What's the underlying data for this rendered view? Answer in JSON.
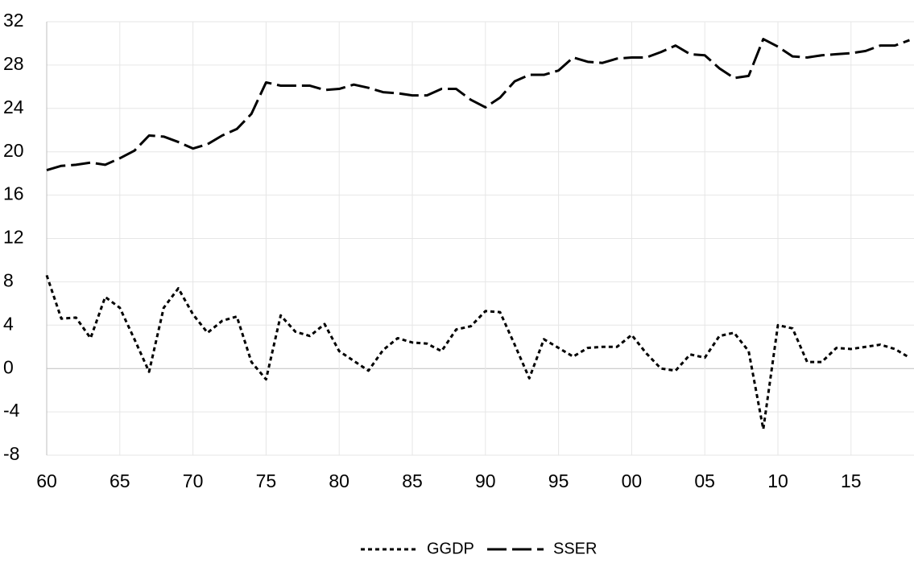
{
  "chart_data": {
    "type": "line",
    "categories": [
      "60",
      null,
      null,
      null,
      null,
      "65",
      null,
      null,
      null,
      null,
      "70",
      null,
      null,
      null,
      null,
      "75",
      null,
      null,
      null,
      null,
      "80",
      null,
      null,
      null,
      null,
      "85",
      null,
      null,
      null,
      null,
      "90",
      null,
      null,
      null,
      null,
      "95",
      null,
      null,
      null,
      null,
      "00",
      null,
      null,
      null,
      null,
      "05",
      null,
      null,
      null,
      null,
      "10",
      null,
      null,
      null,
      null,
      "15",
      null,
      null,
      null,
      null
    ],
    "series": [
      {
        "name": "GGDP",
        "color": "#000000",
        "line_style": "dotted",
        "values": [
          8.6,
          4.6,
          4.7,
          2.8,
          6.6,
          5.6,
          2.7,
          -0.3,
          5.6,
          7.4,
          5.0,
          3.3,
          4.4,
          4.8,
          0.6,
          -1.0,
          4.9,
          3.4,
          3.0,
          4.1,
          1.6,
          0.7,
          -0.2,
          1.7,
          2.8,
          2.4,
          2.3,
          1.6,
          3.6,
          3.9,
          5.3,
          5.2,
          2.2,
          -0.9,
          2.7,
          1.9,
          1.1,
          1.9,
          2.0,
          2.0,
          3.1,
          1.4,
          0.0,
          -0.2,
          1.3,
          1.0,
          3.0,
          3.3,
          1.6,
          -5.6,
          4.0,
          3.7,
          0.6,
          0.6,
          1.9,
          1.8,
          2.0,
          2.2,
          1.8,
          1.0
        ]
      },
      {
        "name": "SSER",
        "color": "#000000",
        "line_style": "dashed",
        "values": [
          18.3,
          18.7,
          18.8,
          19.0,
          18.8,
          19.4,
          20.1,
          21.5,
          21.4,
          20.9,
          20.3,
          20.7,
          21.5,
          22.1,
          23.5,
          26.4,
          26.1,
          26.1,
          26.1,
          25.7,
          25.8,
          26.2,
          25.9,
          25.5,
          25.4,
          25.2,
          25.2,
          25.8,
          25.8,
          24.8,
          24.1,
          25.0,
          26.5,
          27.1,
          27.1,
          27.5,
          28.7,
          28.3,
          28.2,
          28.6,
          28.7,
          28.7,
          29.2,
          29.8,
          29.0,
          28.9,
          27.7,
          26.8,
          27.0,
          30.4,
          29.7,
          28.8,
          28.7,
          28.9,
          29.0,
          29.1,
          29.3,
          29.8,
          29.8,
          30.3
        ]
      }
    ],
    "ylim": [
      -8,
      32
    ],
    "yticks": [
      -8,
      -4,
      0,
      4,
      8,
      12,
      16,
      20,
      24,
      28,
      32
    ],
    "grid": true,
    "legend": "bottom"
  }
}
